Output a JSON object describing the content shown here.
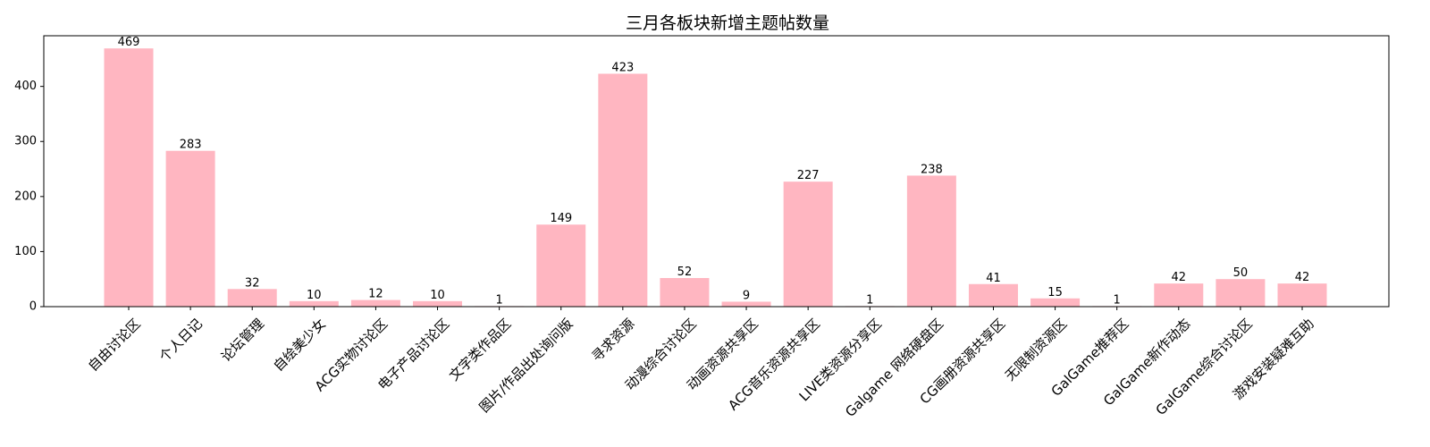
{
  "chart_data": {
    "type": "bar",
    "title": "三月各板块新增主题帖数量",
    "xlabel": "",
    "ylabel": "",
    "categories": [
      "自由讨论区",
      "个人日记",
      "论坛管理",
      "自绘美少女",
      "ACG实物讨论区",
      "电子产品讨论区",
      "文字类作品区",
      "图片/作品出处询问版",
      "寻求资源",
      "动漫综合讨论区",
      "动画资源共享区",
      "ACG音乐资源共享区",
      "LIVE类资源分享区",
      "Galgame 网络硬盘区",
      "CG画册资源共享区",
      "无限制资源区",
      "GalGame推荐区",
      "GalGame新作动态",
      "GalGame综合讨论区",
      "游戏安装疑难互助"
    ],
    "values": [
      469,
      283,
      32,
      10,
      12,
      10,
      1,
      149,
      423,
      52,
      9,
      227,
      1,
      238,
      41,
      15,
      1,
      42,
      50,
      42
    ],
    "data_labels": [
      "469",
      "283",
      "32",
      "10",
      "12",
      "10",
      "1",
      "149",
      "423",
      "52",
      "9",
      "227",
      "1",
      "238",
      "41",
      "15",
      "1",
      "42",
      "50",
      "42"
    ],
    "yticks": [
      0,
      100,
      200,
      300,
      400
    ],
    "ytick_labels": [
      "0",
      "100",
      "200",
      "300",
      "400"
    ],
    "ylim": [
      0,
      492
    ],
    "bar_color": "#ffb6c1",
    "grid": false,
    "legend": "none"
  }
}
